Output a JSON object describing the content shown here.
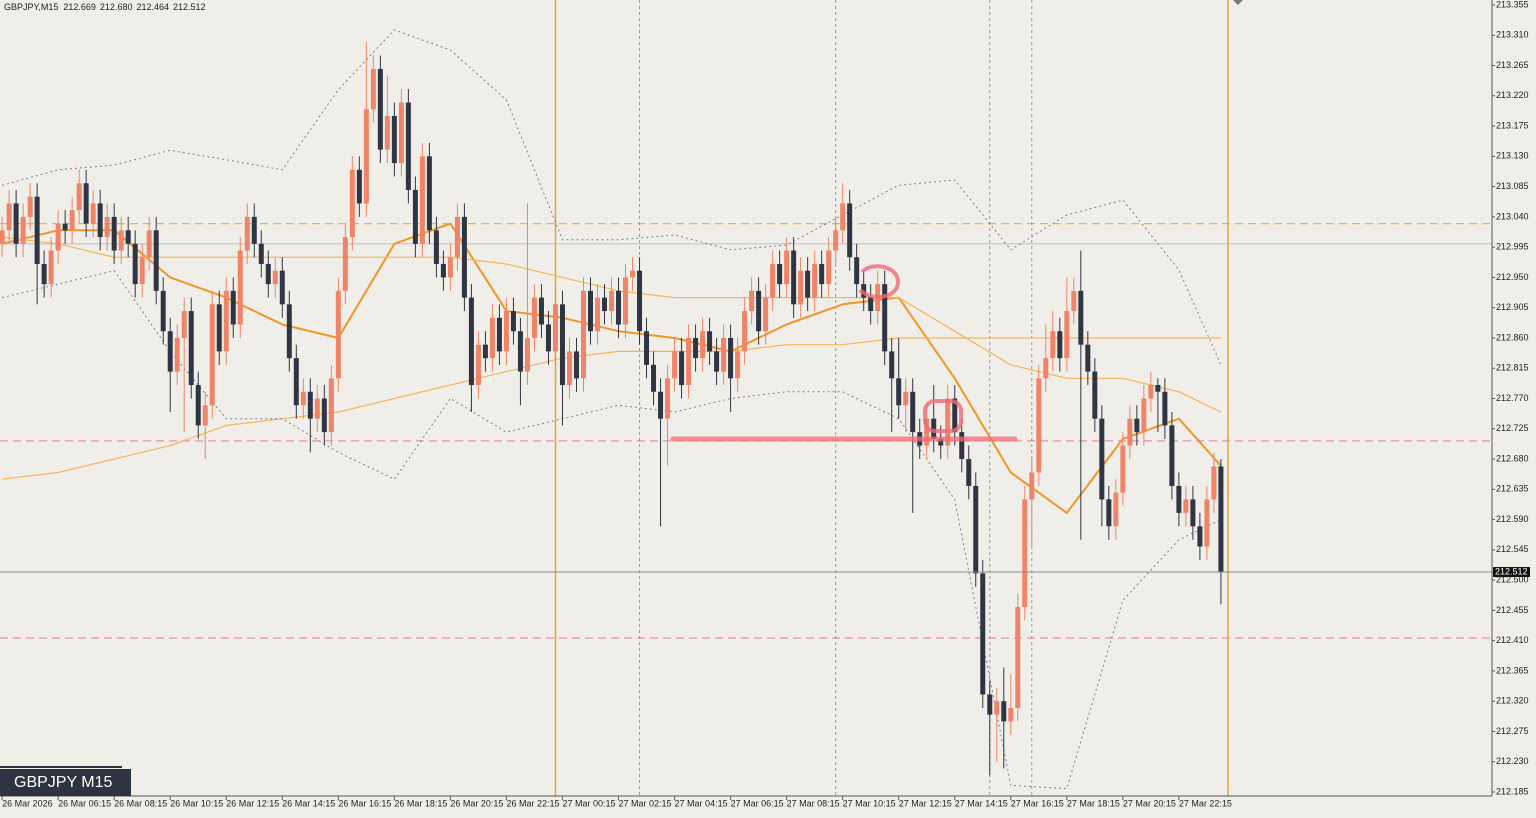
{
  "chart_data": {
    "type": "candlestick",
    "title": "GBPJPY,M15",
    "last_high_label": "212.680",
    "watermark": "GBPJPY M15",
    "up_color": "#f08468",
    "down_color": "#2f3542",
    "xlim": [
      -0.3,
      212.7
    ],
    "ylim": [
      212.185,
      213.355
    ],
    "yticks": [
      213.355,
      {
        "value": 213.31,
        "label": "213.310"
      },
      213.265,
      {
        "value": 213.22,
        "label": "213.220"
      },
      213.175,
      {
        "value": 213.13,
        "label": "213.130"
      },
      213.085,
      {
        "value": 213.04,
        "label": "213.040"
      },
      212.995,
      {
        "value": 212.95,
        "label": "212.950"
      },
      212.905,
      {
        "value": 212.86,
        "label": "212.860"
      },
      212.815,
      {
        "value": 212.77,
        "label": "212.770"
      },
      212.725,
      {
        "value": 212.68,
        "label": "212.680"
      },
      212.635,
      {
        "value": 212.59,
        "label": "212.590"
      },
      212.545,
      {
        "value": 212.5,
        "label": "212.500"
      },
      212.455,
      {
        "value": 212.41,
        "label": "212.410"
      },
      212.365,
      {
        "value": 212.32,
        "label": "212.320"
      },
      212.275,
      {
        "value": 212.23,
        "label": "212.230"
      },
      212.185
    ],
    "xticks": [
      {
        "value": 0,
        "label": "26 Mar 2026"
      },
      {
        "value": 8,
        "label": "26 Mar 06:15"
      },
      {
        "value": 16,
        "label": "26 Mar 08:15"
      },
      {
        "value": 24,
        "label": "26 Mar 10:15"
      },
      {
        "value": 32,
        "label": "26 Mar 12:15"
      },
      {
        "value": 40,
        "label": "26 Mar 14:15"
      },
      {
        "value": 48,
        "label": "26 Mar 16:15"
      },
      {
        "value": 56,
        "label": "26 Mar 18:15"
      },
      {
        "value": 64,
        "label": "26 Mar 20:15"
      },
      {
        "value": 72,
        "label": "26 Mar 22:15"
      },
      {
        "value": 80,
        "label": "27 Mar 00:15"
      },
      {
        "value": 88,
        "label": "27 Mar 02:15"
      },
      {
        "value": 96,
        "label": "27 Mar 04:15"
      },
      {
        "value": 104,
        "label": "27 Mar 06:15"
      },
      {
        "value": 112,
        "label": "27 Mar 08:15"
      },
      {
        "value": 120,
        "label": "27 Mar 10:15"
      },
      {
        "value": 128,
        "label": "27 Mar 12:15"
      },
      {
        "value": 136,
        "label": "27 Mar 14:15"
      },
      {
        "value": 144,
        "label": "27 Mar 16:15"
      },
      {
        "value": 152,
        "label": "27 Mar 18:15"
      },
      {
        "value": 160,
        "label": "27 Mar 20:15"
      },
      {
        "value": 168,
        "label": "27 Mar 22:15"
      }
    ],
    "levels": [
      {
        "value": 213.03,
        "color": "#f5b04a",
        "dash": "8,5"
      },
      {
        "value": 213.0,
        "color": "#c4c4c4"
      },
      {
        "value": 212.707,
        "color": "#ee8fa3",
        "dash": "8,5"
      },
      {
        "value": 212.414,
        "color": "#ee8fa3",
        "dash": "8,5"
      }
    ],
    "vlines": [
      {
        "x": 79,
        "color": "#f0a030"
      },
      {
        "x": 91,
        "color": "#9a9a9a",
        "dash": "3,3"
      },
      {
        "x": 119,
        "color": "#9a9a9a",
        "dash": "3,3"
      },
      {
        "x": 141,
        "color": "#9a9a9a",
        "dash": "3,3"
      },
      {
        "x": 147,
        "color": "#9a9a9a",
        "dash": "3,3"
      },
      {
        "x": 175,
        "color": "#f0a030"
      }
    ],
    "indicator_x": [
      0,
      8,
      16,
      24,
      32,
      40,
      48,
      56,
      64,
      72,
      80,
      88,
      96,
      104,
      112,
      120,
      128,
      136,
      144,
      152,
      160,
      168,
      174
    ],
    "indicators": [
      {
        "color": "#f0952a",
        "width": 2,
        "values": [
          213.0,
          213.02,
          213.02,
          212.95,
          212.92,
          212.88,
          212.86,
          213.0,
          213.03,
          212.9,
          212.89,
          212.87,
          212.86,
          212.84,
          212.88,
          212.91,
          212.92,
          212.8,
          212.66,
          212.6,
          212.71,
          212.74,
          212.67
        ]
      },
      {
        "color": "#f5b45a",
        "width": 1.2,
        "values": [
          213.01,
          213.0,
          212.98,
          212.98,
          212.98,
          212.98,
          212.98,
          212.98,
          212.98,
          212.97,
          212.95,
          212.93,
          212.92,
          212.92,
          212.92,
          212.92,
          212.92,
          212.87,
          212.82,
          212.8,
          212.8,
          212.78,
          212.75
        ]
      },
      {
        "color": "#f5b45a",
        "width": 1.2,
        "values": [
          212.65,
          212.66,
          212.68,
          212.7,
          212.73,
          212.74,
          212.75,
          212.77,
          212.79,
          212.81,
          212.83,
          212.84,
          212.84,
          212.84,
          212.85,
          212.85,
          212.86,
          212.86,
          212.86,
          212.86,
          212.86,
          212.86,
          212.86
        ]
      },
      {
        "color": "#7c7c98",
        "width": 1,
        "dash": "2,3",
        "values": [
          213.087,
          213.11,
          213.117,
          213.139,
          213.125,
          213.11,
          213.229,
          213.318,
          213.288,
          213.214,
          213.006,
          213.006,
          213.013,
          212.991,
          212.998,
          213.043,
          213.087,
          213.095,
          212.991,
          213.043,
          213.065,
          212.961,
          212.82
        ]
      },
      {
        "color": "#7c7c98",
        "width": 1,
        "dash": "2,3",
        "values": [
          212.92,
          212.94,
          212.96,
          212.84,
          212.74,
          212.74,
          212.69,
          212.65,
          212.77,
          212.72,
          212.74,
          212.76,
          212.75,
          212.77,
          212.78,
          212.78,
          212.74,
          212.62,
          212.195,
          212.19,
          212.47,
          212.56,
          212.59
        ]
      }
    ],
    "open": [
      213.0,
      213.02,
      213.06,
      213.0,
      213.04,
      213.07,
      212.97,
      212.94,
      212.99,
      213.03,
      213.02,
      213.05,
      213.09,
      213.03,
      213.06,
      213.01,
      213.04,
      212.99,
      213.02,
      213.0,
      212.94,
      212.98,
      213.02,
      212.93,
      212.87,
      212.81,
      212.86,
      212.9,
      212.79,
      212.73,
      212.76,
      212.91,
      212.84,
      212.93,
      212.88,
      212.99,
      213.04,
      213.0,
      212.97,
      212.94,
      212.96,
      212.91,
      212.83,
      212.76,
      212.78,
      212.74,
      212.77,
      212.72,
      212.8,
      212.93,
      213.01,
      213.11,
      213.06,
      213.2,
      213.26,
      213.14,
      213.19,
      213.12,
      213.21,
      213.08,
      213.0,
      213.13,
      213.02,
      212.97,
      212.95,
      212.98,
      213.04,
      212.92,
      212.79,
      212.85,
      212.83,
      212.89,
      212.84,
      212.9,
      212.87,
      212.81,
      212.86,
      212.92,
      212.88,
      212.84,
      212.91,
      212.79,
      212.84,
      212.8,
      212.93,
      212.87,
      212.92,
      212.9,
      212.93,
      212.88,
      212.95,
      212.96,
      212.87,
      212.82,
      212.78,
      212.74,
      212.8,
      212.84,
      212.79,
      212.86,
      212.83,
      212.87,
      212.84,
      212.81,
      212.86,
      212.8,
      212.84,
      212.9,
      212.93,
      212.87,
      212.92,
      212.97,
      212.94,
      212.99,
      212.91,
      212.96,
      212.92,
      212.97,
      212.94,
      212.99,
      213.02,
      213.06,
      212.98,
      212.94,
      212.92,
      212.9,
      212.94,
      212.84,
      212.8,
      212.76,
      212.78,
      212.72,
      212.7,
      212.74,
      212.71,
      212.7,
      212.77,
      212.72,
      212.68,
      212.64,
      212.51,
      212.33,
      212.3,
      212.32,
      212.29,
      212.31,
      212.46,
      212.62,
      212.66,
      212.8,
      212.83,
      212.87,
      212.83,
      212.9,
      212.93,
      212.85,
      212.81,
      212.74,
      212.62,
      212.58,
      212.63,
      212.7,
      212.74,
      212.72,
      212.77,
      212.79,
      212.78,
      212.73,
      212.64,
      212.6,
      212.62,
      212.58,
      212.55,
      212.62,
      212.669
    ],
    "high": [
      213.04,
      213.08,
      213.08,
      213.06,
      213.09,
      213.09,
      212.99,
      213.01,
      213.05,
      213.05,
      213.07,
      213.11,
      213.11,
      213.08,
      213.08,
      213.06,
      213.06,
      213.04,
      213.04,
      213.02,
      213.0,
      213.04,
      213.04,
      212.95,
      212.89,
      212.88,
      212.92,
      212.92,
      212.81,
      212.78,
      212.93,
      212.93,
      212.95,
      212.95,
      213.01,
      213.06,
      213.06,
      213.02,
      212.99,
      212.98,
      212.98,
      212.93,
      212.85,
      212.8,
      212.8,
      212.79,
      212.79,
      212.82,
      212.95,
      213.03,
      213.13,
      213.13,
      213.3,
      213.28,
      213.28,
      213.25,
      213.21,
      213.23,
      213.23,
      213.1,
      213.15,
      213.15,
      213.04,
      212.99,
      213.0,
      213.06,
      213.06,
      212.94,
      212.87,
      212.87,
      212.91,
      212.91,
      212.92,
      212.92,
      212.89,
      213.06,
      212.94,
      212.94,
      212.9,
      212.93,
      212.93,
      212.86,
      212.86,
      212.95,
      212.95,
      212.94,
      212.94,
      212.95,
      212.95,
      212.97,
      212.98,
      212.98,
      212.89,
      212.84,
      212.8,
      212.82,
      212.86,
      212.86,
      212.88,
      212.88,
      212.89,
      212.89,
      212.86,
      212.88,
      212.88,
      212.86,
      212.92,
      212.95,
      212.95,
      212.94,
      212.99,
      212.99,
      213.01,
      213.01,
      212.98,
      212.98,
      212.99,
      212.99,
      213.01,
      213.04,
      213.09,
      213.08,
      213.0,
      212.96,
      212.94,
      212.96,
      212.96,
      212.86,
      212.86,
      212.8,
      212.8,
      212.74,
      212.76,
      212.79,
      212.73,
      212.79,
      212.79,
      212.74,
      212.7,
      212.66,
      212.53,
      212.35,
      212.34,
      212.37,
      212.36,
      212.48,
      212.64,
      212.68,
      212.82,
      212.88,
      212.9,
      212.89,
      212.95,
      212.95,
      212.99,
      212.87,
      212.83,
      212.76,
      212.64,
      212.65,
      212.72,
      212.76,
      212.76,
      212.79,
      212.81,
      212.8,
      212.8,
      212.75,
      212.66,
      212.64,
      212.64,
      212.6,
      212.64,
      212.69,
      212.68
    ],
    "low": [
      212.98,
      213.0,
      212.98,
      212.98,
      213.02,
      212.91,
      212.92,
      212.92,
      212.97,
      213.0,
      213.0,
      213.03,
      213.01,
      213.01,
      212.99,
      212.99,
      212.97,
      212.97,
      212.98,
      212.92,
      212.92,
      212.96,
      212.91,
      212.85,
      212.75,
      212.79,
      212.72,
      212.77,
      212.71,
      212.68,
      212.74,
      212.82,
      212.82,
      212.86,
      212.86,
      212.97,
      212.98,
      212.95,
      212.92,
      212.92,
      212.89,
      212.81,
      212.74,
      212.74,
      212.69,
      212.72,
      212.7,
      212.7,
      212.78,
      212.91,
      212.99,
      213.04,
      213.04,
      213.18,
      213.12,
      213.12,
      213.1,
      213.1,
      213.06,
      212.98,
      212.98,
      213.0,
      212.95,
      212.93,
      212.93,
      212.96,
      212.9,
      212.75,
      212.77,
      212.81,
      212.81,
      212.82,
      212.82,
      212.85,
      212.76,
      212.79,
      212.84,
      212.86,
      212.82,
      212.82,
      212.73,
      212.77,
      212.78,
      212.78,
      212.85,
      212.85,
      212.88,
      212.88,
      212.86,
      212.86,
      212.93,
      212.85,
      212.8,
      212.76,
      212.58,
      212.67,
      212.78,
      212.77,
      212.77,
      212.81,
      212.81,
      212.82,
      212.79,
      212.79,
      212.75,
      212.78,
      212.82,
      212.88,
      212.85,
      212.85,
      212.9,
      212.92,
      212.92,
      212.89,
      212.89,
      212.9,
      212.9,
      212.92,
      212.92,
      212.97,
      213.0,
      212.96,
      212.92,
      212.9,
      212.88,
      212.88,
      212.82,
      212.72,
      212.74,
      212.72,
      212.6,
      212.68,
      212.68,
      212.69,
      212.68,
      212.68,
      212.7,
      212.66,
      212.62,
      212.49,
      212.31,
      212.21,
      212.23,
      212.22,
      212.27,
      212.29,
      212.44,
      212.55,
      212.64,
      212.78,
      212.81,
      212.81,
      212.81,
      212.88,
      212.56,
      212.79,
      212.72,
      212.58,
      212.56,
      212.56,
      212.61,
      212.68,
      212.7,
      212.7,
      212.75,
      212.72,
      212.71,
      212.62,
      212.58,
      212.58,
      212.56,
      212.53,
      212.53,
      212.6,
      212.464
    ],
    "close": [
      213.02,
      213.06,
      213.0,
      213.04,
      213.07,
      212.97,
      212.94,
      212.99,
      213.03,
      213.02,
      213.05,
      213.09,
      213.03,
      213.06,
      213.01,
      213.04,
      212.99,
      213.02,
      213.0,
      212.94,
      212.98,
      213.02,
      212.93,
      212.87,
      212.81,
      212.86,
      212.9,
      212.79,
      212.73,
      212.76,
      212.91,
      212.84,
      212.93,
      212.88,
      212.99,
      213.04,
      213.0,
      212.97,
      212.94,
      212.96,
      212.91,
      212.83,
      212.76,
      212.78,
      212.74,
      212.77,
      212.72,
      212.8,
      212.93,
      213.01,
      213.11,
      213.06,
      213.2,
      213.26,
      213.14,
      213.19,
      213.12,
      213.21,
      213.08,
      213.0,
      213.13,
      213.02,
      212.97,
      212.95,
      212.98,
      213.04,
      212.92,
      212.79,
      212.85,
      212.83,
      212.89,
      212.84,
      212.9,
      212.87,
      212.81,
      212.86,
      212.92,
      212.88,
      212.84,
      212.91,
      212.79,
      212.84,
      212.8,
      212.93,
      212.87,
      212.92,
      212.9,
      212.93,
      212.88,
      212.95,
      212.96,
      212.87,
      212.82,
      212.78,
      212.74,
      212.8,
      212.84,
      212.79,
      212.86,
      212.83,
      212.87,
      212.84,
      212.81,
      212.86,
      212.8,
      212.84,
      212.9,
      212.93,
      212.87,
      212.92,
      212.97,
      212.94,
      212.99,
      212.91,
      212.96,
      212.92,
      212.97,
      212.94,
      212.99,
      213.02,
      213.06,
      212.98,
      212.94,
      212.92,
      212.9,
      212.94,
      212.84,
      212.8,
      212.76,
      212.78,
      212.72,
      212.7,
      212.74,
      212.71,
      212.7,
      212.77,
      212.72,
      212.68,
      212.64,
      212.51,
      212.33,
      212.3,
      212.32,
      212.29,
      212.31,
      212.46,
      212.62,
      212.66,
      212.8,
      212.83,
      212.87,
      212.83,
      212.9,
      212.93,
      212.85,
      212.81,
      212.74,
      212.62,
      212.58,
      212.63,
      212.7,
      212.74,
      212.72,
      212.77,
      212.79,
      212.78,
      212.73,
      212.64,
      212.6,
      212.62,
      212.58,
      212.55,
      212.62,
      212.669,
      212.512
    ]
  }
}
